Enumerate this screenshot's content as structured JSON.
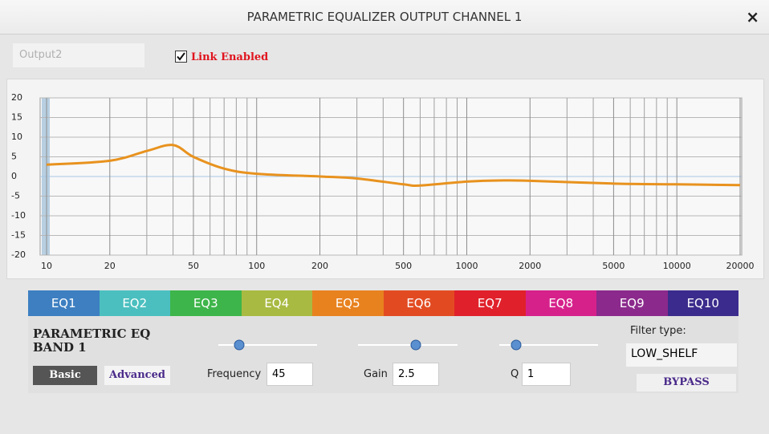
{
  "dialog": {
    "title": "PARAMETRIC EQUALIZER OUTPUT CHANNEL 1",
    "close": "×"
  },
  "toolbar": {
    "output_name": "Output2",
    "link_checked": true,
    "link_label": "Link Enabled"
  },
  "chart_data": {
    "type": "line",
    "x": [
      10,
      20,
      30,
      40,
      50,
      70,
      100,
      200,
      300,
      500,
      600,
      1000,
      1500,
      2000,
      5000,
      10000,
      20000
    ],
    "series": [
      {
        "color": "#e8921e",
        "values": [
          3,
          4,
          6.5,
          8,
          5,
          2,
          0.7,
          0,
          -0.5,
          -2,
          -2.3,
          -1.3,
          -1,
          -1.1,
          -1.8,
          -2,
          -2.2
        ]
      }
    ],
    "xlim": [
      10,
      20000
    ],
    "ylim": [
      -20,
      20
    ],
    "log_x": true,
    "grid": true,
    "xticks": [
      10,
      20,
      50,
      100,
      200,
      500,
      1000,
      2000,
      5000,
      10000,
      20000
    ],
    "x_minor_ticks": [
      30,
      40,
      60,
      70,
      80,
      90,
      300,
      400,
      600,
      700,
      800,
      900,
      3000,
      4000,
      6000,
      7000,
      8000,
      9000
    ],
    "yticks": [
      20,
      15,
      10,
      5,
      0,
      -5,
      -10,
      -15,
      -20
    ]
  },
  "tabs": [
    {
      "label": "EQ1",
      "color": "#3d7fc1"
    },
    {
      "label": "EQ2",
      "color": "#4bbfbf"
    },
    {
      "label": "EQ3",
      "color": "#3db54a"
    },
    {
      "label": "EQ4",
      "color": "#a9ba42"
    },
    {
      "label": "EQ5",
      "color": "#e8821f"
    },
    {
      "label": "EQ6",
      "color": "#e24b22"
    },
    {
      "label": "EQ7",
      "color": "#e0212b"
    },
    {
      "label": "EQ8",
      "color": "#d6218b"
    },
    {
      "label": "EQ9",
      "color": "#8b2a8c"
    },
    {
      "label": "EQ10",
      "color": "#3b2b8c"
    }
  ],
  "active_tab": 0,
  "band": {
    "title": "PARAMETRIC EQ BAND 1",
    "basic": "Basic",
    "advanced": "Advanced",
    "frequency": {
      "label": "Frequency",
      "value": 45
    },
    "gain": {
      "label": "Gain",
      "value": 2.5
    },
    "q": {
      "label": "Q",
      "value": 1
    },
    "filter_type": {
      "label": "Filter type:",
      "value": "LOW_SHELF"
    },
    "bypass": "BYPASS"
  }
}
